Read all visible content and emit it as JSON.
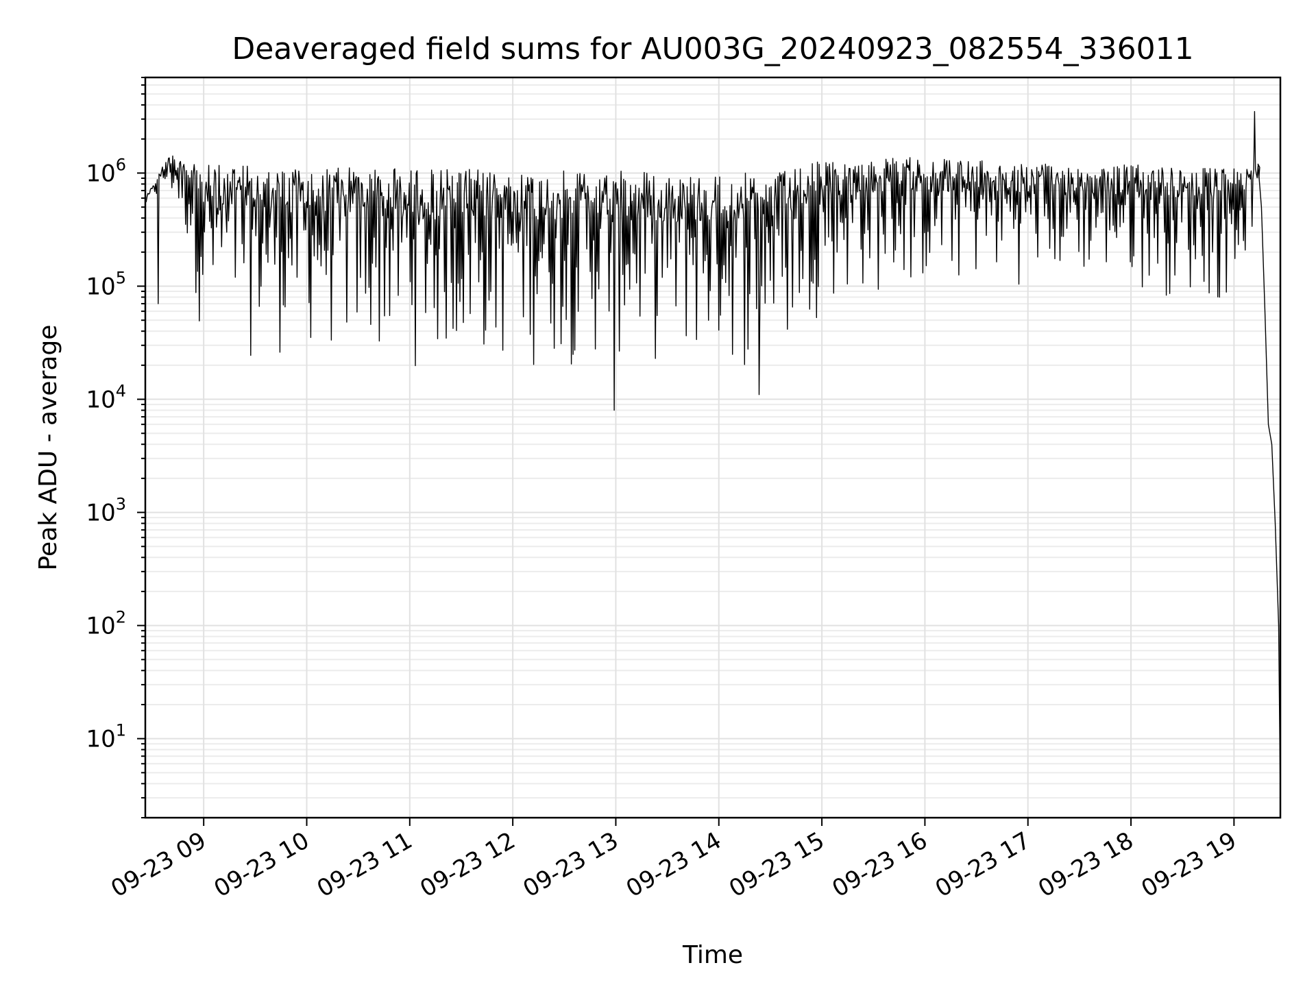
{
  "chart_data": {
    "type": "line",
    "title": "Deaveraged field sums for AU003G_20240923_082554_336011",
    "xlabel": "Time",
    "ylabel": "Peak ADU - average",
    "yscale": "log",
    "ylim": [
      2,
      7000000
    ],
    "xlim": [
      "09-23 08:26",
      "09-23 19:27"
    ],
    "grid": true,
    "x_tick_labels": [
      "09-23 09",
      "09-23 10",
      "09-23 11",
      "09-23 12",
      "09-23 13",
      "09-23 14",
      "09-23 15",
      "09-23 16",
      "09-23 17",
      "09-23 18",
      "09-23 19"
    ],
    "y_ticks": [
      {
        "base": "10",
        "exp": "1",
        "value": 10
      },
      {
        "base": "10",
        "exp": "2",
        "value": 100
      },
      {
        "base": "10",
        "exp": "3",
        "value": 1000
      },
      {
        "base": "10",
        "exp": "4",
        "value": 10000
      },
      {
        "base": "10",
        "exp": "5",
        "value": 100000
      },
      {
        "base": "10",
        "exp": "6",
        "value": 1000000
      }
    ],
    "series": [
      {
        "color": "#000000",
        "envelope": {
          "x": [
            "09-23 08:26",
            "09-23 08:40",
            "09-23 08:50",
            "09-23 09:00",
            "09-23 09:30",
            "09-23 10:00",
            "09-23 10:30",
            "09-23 11:00",
            "09-23 11:30",
            "09-23 12:00",
            "09-23 12:30",
            "09-23 13:00",
            "09-23 13:30",
            "09-23 14:00",
            "09-23 14:20",
            "09-23 14:40",
            "09-23 15:00",
            "09-23 15:30",
            "09-23 16:00",
            "09-23 16:30",
            "09-23 17:00",
            "09-23 17:30",
            "09-23 18:00",
            "09-23 18:30",
            "09-23 19:00",
            "09-23 19:10",
            "09-23 19:15"
          ],
          "upper": [
            600000,
            1500000,
            1400000,
            1200000,
            1150000,
            1100000,
            1150000,
            1100000,
            1100000,
            1050000,
            1050000,
            1050000,
            1000000,
            1000000,
            1000000,
            1050000,
            1300000,
            1350000,
            1400000,
            1300000,
            1200000,
            1200000,
            1200000,
            1150000,
            1100000,
            1100000,
            1200000
          ],
          "lower": [
            500000,
            600000,
            200000,
            25000,
            20000,
            22000,
            18000,
            17000,
            16000,
            16000,
            17000,
            18000,
            17000,
            16000,
            15000,
            20000,
            60000,
            70000,
            80000,
            90000,
            100000,
            100000,
            90000,
            70000,
            60000,
            250000,
            900000
          ]
        },
        "spikes": [
          {
            "x": "09-23 08:33",
            "y": 70000
          },
          {
            "x": "09-23 12:59",
            "y": 8000
          },
          {
            "x": "09-23 14:23",
            "y": 11000
          },
          {
            "x": "09-23 19:12",
            "y": 3500000
          }
        ],
        "tail": {
          "x": [
            "09-23 19:14",
            "09-23 19:16",
            "09-23 19:18",
            "09-23 19:20",
            "09-23 19:22",
            "09-23 19:24",
            "09-23 19:26",
            "09-23 19:27"
          ],
          "y": [
            1200000,
            500000,
            60000,
            6000,
            4000,
            800,
            100,
            3
          ]
        }
      }
    ]
  }
}
